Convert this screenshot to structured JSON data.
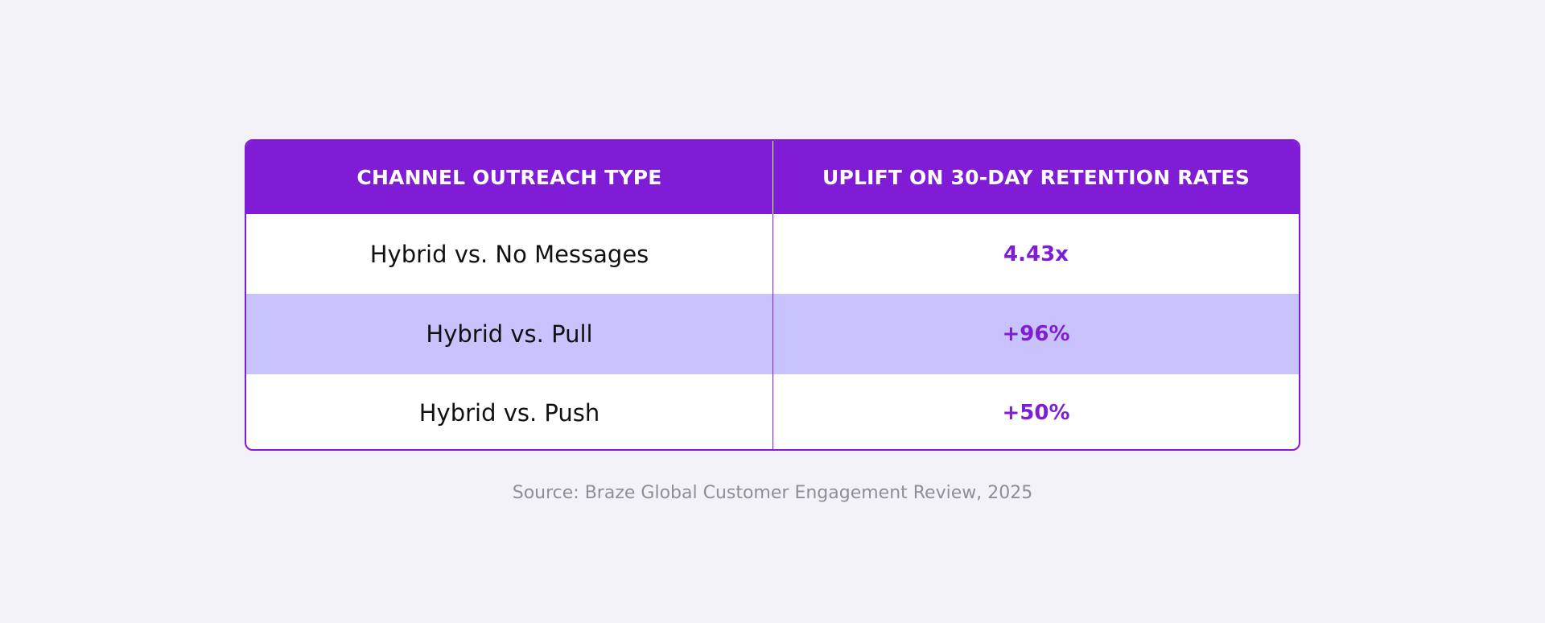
{
  "table": {
    "headers": [
      "CHANNEL OUTREACH TYPE",
      "UPLIFT ON 30-DAY RETENTION RATES"
    ],
    "rows": [
      {
        "type": "Hybrid vs. No Messages",
        "uplift": "4.43x"
      },
      {
        "type": "Hybrid vs. Pull",
        "uplift": "+96%"
      },
      {
        "type": "Hybrid vs. Push",
        "uplift": "+50%"
      }
    ]
  },
  "source": "Source: Braze Global Customer Engagement Review, 2025",
  "colors": {
    "accent": "#801cd6",
    "highlight_row": "#c9c3fd",
    "background": "#f3f2f8"
  }
}
